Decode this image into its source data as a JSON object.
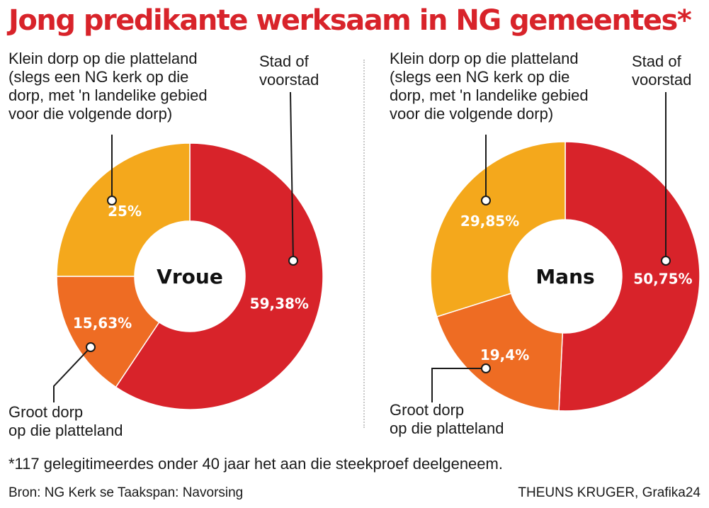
{
  "title": "Jong predikante werksaam in NG gemeentes*",
  "colors": {
    "title": "#d8232a",
    "city": "#d8232a",
    "small_village": "#f4a81c",
    "large_village": "#ee6c23",
    "leader": "#1a1a1a"
  },
  "labels": {
    "small_village": [
      "Klein dorp op die platteland",
      "(slegs een NG kerk op die",
      "dorp, met 'n landelike gebied",
      "voor die volgende dorp)"
    ],
    "city": [
      "Stad of",
      "voorstad"
    ],
    "large_village": [
      "Groot dorp",
      "op die platteland"
    ]
  },
  "chart_data": [
    {
      "type": "pie",
      "variant": "donut",
      "center_label": "Vroue",
      "categories": [
        "Stad of voorstad",
        "Groot dorp op die platteland",
        "Klein dorp op die platteland"
      ],
      "values": [
        59.38,
        15.63,
        25
      ],
      "value_labels": [
        "59,38%",
        "15,63%",
        "25%"
      ]
    },
    {
      "type": "pie",
      "variant": "donut",
      "center_label": "Mans",
      "categories": [
        "Stad of voorstad",
        "Groot dorp op die platteland",
        "Klein dorp op die platteland"
      ],
      "values": [
        50.75,
        19.4,
        29.85
      ],
      "value_labels": [
        "50,75%",
        "19,4%",
        "29,85%"
      ]
    }
  ],
  "footnote": "*117 gelegitimeerdes onder 40 jaar het aan die steekproef deelgeneem.",
  "source": "Bron: NG Kerk se Taakspan: Navorsing",
  "credit": "THEUNS KRUGER, Grafika24"
}
